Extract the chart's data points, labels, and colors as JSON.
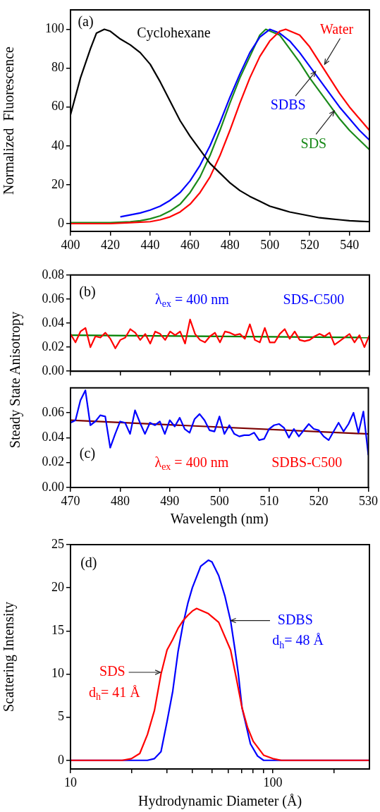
{
  "chart_data": [
    {
      "type": "line",
      "ylabel": "Normalized  Fluorescence",
      "xlim": [
        400,
        550
      ],
      "ylim": [
        -4,
        110
      ],
      "xticks": [
        400,
        420,
        440,
        460,
        480,
        500,
        520,
        540
      ],
      "yticks": [
        0,
        20,
        40,
        60,
        80,
        100
      ],
      "grid": false,
      "annotations": [
        "(a)"
      ],
      "series": [
        {
          "name": "Cyclohexane",
          "color": "#000000",
          "x": [
            400,
            405,
            410,
            413,
            417,
            420,
            425,
            430,
            435,
            440,
            445,
            450,
            455,
            460,
            465,
            470,
            475,
            480,
            485,
            490,
            495,
            500,
            505,
            510,
            515,
            520,
            525,
            530,
            535,
            540,
            545,
            550
          ],
          "values": [
            56,
            75,
            90,
            98,
            100,
            99,
            95,
            92,
            88,
            82,
            73,
            63,
            53,
            45,
            38,
            31,
            26,
            21,
            17,
            14,
            11.5,
            9,
            7.5,
            6,
            5,
            4,
            3,
            2.5,
            2,
            1.5,
            1.2,
            1
          ]
        },
        {
          "name": "Water",
          "color": "#ff0000",
          "x": [
            400,
            420,
            430,
            440,
            445,
            450,
            455,
            460,
            465,
            470,
            475,
            480,
            485,
            490,
            495,
            500,
            505,
            508,
            515,
            520,
            525,
            530,
            535,
            540,
            545,
            550
          ],
          "values": [
            0,
            0,
            0.5,
            1,
            2,
            3.5,
            6,
            10,
            16,
            24,
            35,
            48,
            62,
            75,
            86,
            94,
            99,
            100,
            97,
            91,
            83,
            75,
            67,
            60,
            54,
            48
          ]
        },
        {
          "name": "SDBS",
          "color": "#0000ff",
          "x": [
            425,
            430,
            435,
            440,
            445,
            450,
            455,
            460,
            465,
            470,
            475,
            480,
            485,
            490,
            495,
            500,
            505,
            510,
            515,
            520,
            525,
            530,
            535,
            540,
            545,
            550
          ],
          "values": [
            3.5,
            4.5,
            5.5,
            7,
            9,
            12,
            16,
            22,
            30,
            40,
            52,
            65,
            77,
            88,
            96,
            100,
            98,
            94,
            88,
            81,
            74,
            67,
            60,
            54,
            48,
            43
          ]
        },
        {
          "name": "SDS",
          "color": "#1a8a1a",
          "x": [
            400,
            410,
            420,
            430,
            435,
            440,
            445,
            450,
            455,
            460,
            465,
            470,
            475,
            480,
            485,
            490,
            495,
            498,
            505,
            510,
            515,
            520,
            525,
            530,
            535,
            540,
            545,
            550
          ],
          "values": [
            0.5,
            0.5,
            0.5,
            1,
            1.5,
            2.5,
            4,
            6.5,
            10,
            16,
            24,
            35,
            48,
            62,
            75,
            86,
            97,
            100,
            97,
            90,
            83,
            75,
            68,
            61,
            54,
            48,
            43,
            38
          ]
        }
      ]
    },
    {
      "type": "line",
      "ylabel": "Steady State Anisotropy",
      "xlim": [
        470,
        530
      ],
      "ylim": [
        0,
        0.08
      ],
      "xticks": [
        470,
        480,
        490,
        500,
        510,
        520,
        530
      ],
      "yticks": [
        {
          "value": 0,
          "label": "0.00"
        },
        0.02,
        0.04,
        0.06,
        0.08
      ],
      "tick_labels": "y",
      "grid": false,
      "annotations": [
        "(b)",
        "λ$_{ex}$ = 400 nm",
        "SDS-C500"
      ],
      "series": [
        {
          "color": "#ff0000",
          "x": [
            470,
            471,
            472,
            473,
            474,
            475,
            476,
            477,
            478,
            479,
            480,
            481,
            482,
            483,
            484,
            485,
            486,
            487,
            488,
            489,
            490,
            491,
            492,
            493,
            494,
            495,
            496,
            497,
            498,
            499,
            500,
            501,
            502,
            503,
            504,
            505,
            506,
            507,
            508,
            509,
            510,
            511,
            512,
            513,
            514,
            515,
            516,
            517,
            518,
            519,
            520,
            521,
            522,
            523,
            524,
            525,
            526,
            527,
            528,
            529,
            530
          ],
          "values": [
            0.031,
            0.024,
            0.033,
            0.036,
            0.02,
            0.029,
            0.028,
            0.032,
            0.027,
            0.019,
            0.026,
            0.028,
            0.035,
            0.032,
            0.026,
            0.031,
            0.023,
            0.033,
            0.031,
            0.026,
            0.033,
            0.03,
            0.033,
            0.023,
            0.043,
            0.031,
            0.026,
            0.024,
            0.029,
            0.032,
            0.024,
            0.033,
            0.032,
            0.03,
            0.031,
            0.027,
            0.039,
            0.026,
            0.024,
            0.036,
            0.024,
            0.024,
            0.031,
            0.035,
            0.027,
            0.033,
            0.026,
            0.025,
            0.026,
            0.029,
            0.031,
            0.029,
            0.032,
            0.022,
            0.025,
            0.028,
            0.031,
            0.024,
            0.03,
            0.02,
            0.03
          ]
        },
        {
          "type": "line",
          "color": "#008000",
          "x": [
            470,
            530
          ],
          "values": [
            0.03,
            0.028
          ]
        }
      ]
    },
    {
      "type": "line",
      "xlabel": "Wavelength (nm)",
      "xlim": [
        470,
        530
      ],
      "ylim": [
        0,
        0.08
      ],
      "xticks": [
        470,
        480,
        490,
        500,
        510,
        520,
        530
      ],
      "yticks": [
        {
          "value": 0,
          "label": "0.00"
        },
        0.02,
        0.04,
        0.06
      ],
      "grid": false,
      "annotations": [
        "(c)",
        "λ$_{ex}$ = 400 nm",
        "SDBS-C500"
      ],
      "series": [
        {
          "color": "#0000ff",
          "x": [
            470,
            471,
            472,
            473,
            474,
            475,
            476,
            477,
            478,
            479,
            480,
            481,
            482,
            483,
            484,
            485,
            486,
            487,
            488,
            489,
            490,
            491,
            492,
            493,
            494,
            495,
            496,
            497,
            498,
            499,
            500,
            501,
            502,
            503,
            504,
            505,
            506,
            507,
            508,
            509,
            510,
            511,
            512,
            513,
            514,
            515,
            516,
            517,
            518,
            519,
            520,
            521,
            522,
            523,
            524,
            525,
            526,
            527,
            528,
            529,
            530
          ],
          "values": [
            0.052,
            0.054,
            0.07,
            0.078,
            0.05,
            0.053,
            0.058,
            0.057,
            0.032,
            0.043,
            0.053,
            0.052,
            0.043,
            0.062,
            0.052,
            0.043,
            0.052,
            0.05,
            0.053,
            0.043,
            0.054,
            0.049,
            0.056,
            0.047,
            0.044,
            0.055,
            0.059,
            0.054,
            0.046,
            0.045,
            0.057,
            0.043,
            0.05,
            0.043,
            0.041,
            0.042,
            0.042,
            0.044,
            0.038,
            0.039,
            0.047,
            0.05,
            0.051,
            0.048,
            0.04,
            0.047,
            0.041,
            0.046,
            0.051,
            0.047,
            0.046,
            0.041,
            0.038,
            0.045,
            0.052,
            0.045,
            0.051,
            0.06,
            0.044,
            0.061,
            0.026
          ]
        },
        {
          "type": "line",
          "color": "#7b0000",
          "x": [
            470,
            530
          ],
          "values": [
            0.054,
            0.043
          ]
        }
      ]
    },
    {
      "type": "line",
      "xlabel": "Hydrodynamic Diameter (Å)",
      "ylabel": "Scattering Intensity",
      "log": "x",
      "xlim": [
        10,
        300
      ],
      "ylim": [
        -1,
        25
      ],
      "xticks": [
        10,
        {
          "value": 20,
          "label": null
        },
        {
          "value": 30,
          "label": null
        },
        {
          "value": 40,
          "label": null
        },
        {
          "value": 50,
          "label": null
        },
        {
          "value": 60,
          "label": null
        },
        {
          "value": 70,
          "label": null
        },
        {
          "value": 80,
          "label": null
        },
        {
          "value": 90,
          "label": null
        },
        100,
        {
          "value": 200,
          "label": null
        }
      ],
      "yticks": [
        0,
        5,
        10,
        15,
        20,
        25
      ],
      "grid": false,
      "annotations": [
        "(d)",
        {
          "text": "d$_{h}$= 48 Å",
          "x": 61.9,
          "y": 16.2
        },
        {
          "text": "d$_{h}$= 41 Å",
          "x": 27.8,
          "y": 10.2
        }
      ],
      "series": [
        {
          "name": "SDS",
          "color": "#ff0000",
          "x": [
            10,
            18,
            20,
            22,
            24,
            26,
            28,
            30,
            32,
            34,
            36,
            38,
            40,
            42,
            45,
            48,
            54,
            61.8,
            66,
            70.4,
            75,
            80,
            90,
            100,
            110,
            300
          ],
          "values": [
            0,
            0,
            0.2,
            0.8,
            3,
            5.8,
            10,
            12.8,
            14,
            15.3,
            16.2,
            16.8,
            17.3,
            17.6,
            17.3,
            17,
            16,
            12.8,
            9.5,
            6.1,
            3.8,
            2.2,
            0.6,
            0.2,
            0,
            0
          ]
        },
        {
          "name": "SDBS",
          "color": "#0000ff",
          "x": [
            10,
            24,
            26,
            28,
            30,
            32,
            34,
            36,
            38,
            40,
            44,
            48,
            50,
            54,
            58,
            61.8,
            65,
            67.5,
            70.4,
            77.5,
            84,
            90,
            100,
            110,
            300
          ],
          "values": [
            0,
            0,
            0.2,
            1,
            4.5,
            8,
            12.6,
            15.8,
            18.2,
            20,
            22.5,
            23.2,
            23,
            21.4,
            19,
            16.2,
            12.8,
            10,
            6.1,
            1.9,
            0.5,
            0,
            0,
            0,
            0
          ]
        }
      ]
    }
  ]
}
